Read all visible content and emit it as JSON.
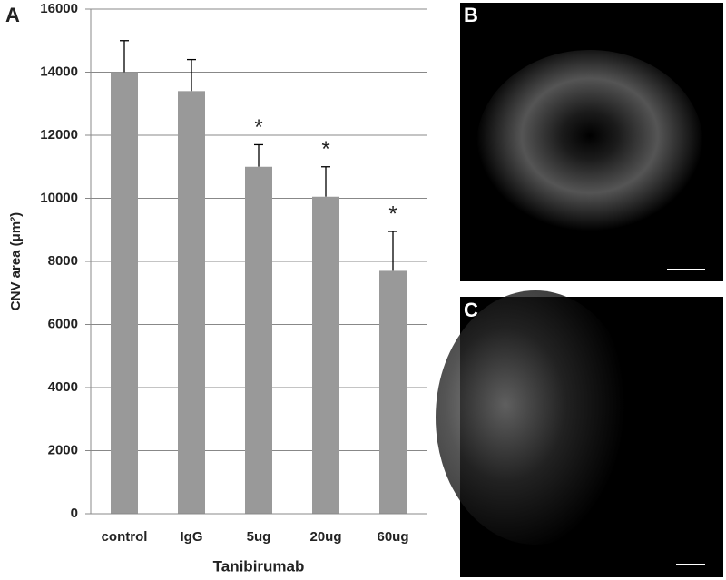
{
  "panel_labels": [
    "A",
    "B",
    "C"
  ],
  "chart_data": {
    "type": "bar",
    "categories": [
      "control",
      "IgG",
      "5ug",
      "20ug",
      "60ug"
    ],
    "values": [
      14000,
      13400,
      11000,
      10050,
      7700
    ],
    "errors": [
      1000,
      1000,
      700,
      950,
      1250
    ],
    "significance": [
      null,
      null,
      "*",
      "*",
      "*"
    ],
    "color": "#999999",
    "xlabel": "Tanibirumab",
    "ylabel": "CNV area (μm²)",
    "ylim": [
      0,
      16000
    ],
    "yticks": [
      0,
      2000,
      4000,
      6000,
      8000,
      10000,
      12000,
      14000,
      16000
    ],
    "grid": true
  }
}
